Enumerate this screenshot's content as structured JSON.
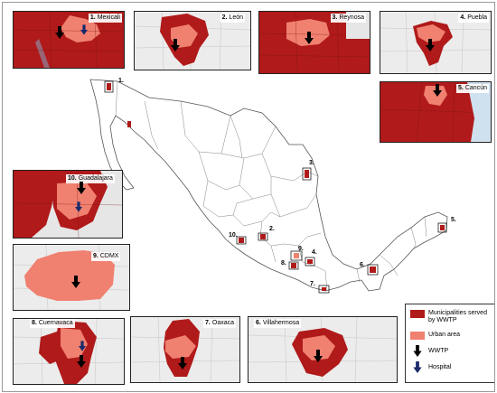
{
  "insets": [
    {
      "id": "mexicali",
      "number": "1.",
      "name": "Mexicali",
      "markers": [
        "wwtp",
        "hospital"
      ]
    },
    {
      "id": "leon",
      "number": "2.",
      "name": "León",
      "markers": [
        "wwtp"
      ]
    },
    {
      "id": "reynosa",
      "number": "3.",
      "name": "Reynosa",
      "markers": [
        "wwtp"
      ]
    },
    {
      "id": "puebla",
      "number": "4.",
      "name": "Puebla",
      "markers": [
        "wwtp"
      ]
    },
    {
      "id": "cancun",
      "number": "5.",
      "name": "Cancún",
      "markers": [
        "wwtp"
      ]
    },
    {
      "id": "guadalajara",
      "number": "10.",
      "name": "Guadalajara",
      "markers": [
        "wwtp",
        "hospital"
      ]
    },
    {
      "id": "cdmx",
      "number": "9.",
      "name": "CDMX",
      "markers": [
        "wwtp"
      ]
    },
    {
      "id": "cuernavaca",
      "number": "8.",
      "name": "Cuernavaca",
      "markers": [
        "wwtp",
        "hospital"
      ]
    },
    {
      "id": "oaxaca",
      "number": "7.",
      "name": "Oaxaca",
      "markers": [
        "wwtp"
      ]
    },
    {
      "id": "villahermosa",
      "number": "6.",
      "name": "Villahermosa",
      "markers": [
        "wwtp"
      ]
    }
  ],
  "map_labels": [
    "1.",
    "2.",
    "3.",
    "4.",
    "5.",
    "6.",
    "7.",
    "8.",
    "9.",
    "10."
  ],
  "legend": [
    {
      "id": "municipalities",
      "label": "Municipalities served by WWTP",
      "color": "#b01a1a"
    },
    {
      "id": "urban",
      "label": "Urban area",
      "color": "#f08070"
    },
    {
      "id": "wwtp",
      "label": "WWTP",
      "color": "#000000"
    },
    {
      "id": "hospital",
      "label": "Hospital",
      "color": "#1a2a6a"
    }
  ],
  "colors": {
    "municipality": "#b01a1a",
    "urban": "#f08070",
    "wwtp": "#000000",
    "hospital": "#1a2a6a",
    "background": "#ececec"
  }
}
